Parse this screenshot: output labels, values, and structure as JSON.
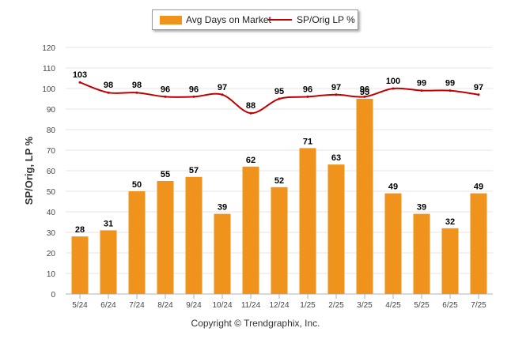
{
  "chart_data": {
    "type": "bar",
    "categories": [
      "5/24",
      "6/24",
      "7/24",
      "8/24",
      "9/24",
      "10/24",
      "11/24",
      "12/24",
      "1/25",
      "2/25",
      "3/25",
      "4/25",
      "5/25",
      "6/25",
      "7/25"
    ],
    "series": [
      {
        "name": "Avg Days on Market",
        "type": "bar",
        "color": "#f0931d",
        "values": [
          28,
          31,
          50,
          55,
          57,
          39,
          62,
          52,
          71,
          63,
          95,
          49,
          39,
          32,
          49
        ]
      },
      {
        "name": "SP/Orig LP %",
        "type": "line",
        "color": "#c00000",
        "values": [
          103,
          98,
          98,
          96,
          96,
          97,
          88,
          95,
          96,
          97,
          96,
          100,
          99,
          99,
          97
        ]
      }
    ],
    "ylabel": "SP/Orig, LP %",
    "xlabel": "",
    "ylim": [
      0,
      120
    ],
    "yticks": [
      "0",
      "10",
      "20",
      "30",
      "40",
      "50",
      "60",
      "70",
      "80",
      "90",
      "100",
      "110",
      "120"
    ],
    "grid": true,
    "legend_position": "top-center"
  },
  "credit": "Copyright © Trendgraphix, Inc."
}
